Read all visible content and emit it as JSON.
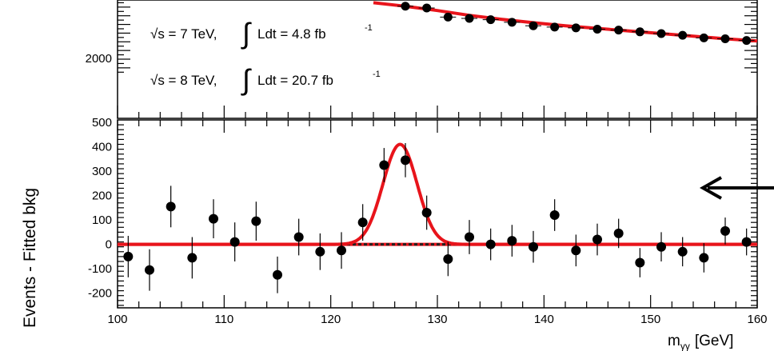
{
  "chart_data": [
    {
      "type": "scatter",
      "panel": "upper",
      "annotations": [
        "√s = 7 TeV,",
        "Ldt = 4.8 fb",
        "-1",
        "√s = 8 TeV,",
        "Ldt = 20.7 fb",
        "-1"
      ],
      "ytick_labels": [
        "2000"
      ],
      "xlim": [
        100,
        160
      ],
      "series": [
        {
          "x": [
            127,
            129,
            131,
            133,
            135,
            137,
            139,
            141,
            143,
            145,
            147,
            149,
            151,
            153,
            155,
            157,
            159
          ],
          "y": [
            2610,
            2590,
            2485,
            2470,
            2455,
            2425,
            2385,
            2370,
            2360,
            2345,
            2335,
            2315,
            2295,
            2275,
            2245,
            2235,
            2215
          ]
        }
      ],
      "fit_line": {
        "x": [
          124,
          127,
          130,
          133,
          136,
          139,
          142,
          145,
          148,
          151,
          154,
          157,
          160
        ],
        "y": [
          2650,
          2610,
          2560,
          2505,
          2460,
          2420,
          2385,
          2355,
          2325,
          2295,
          2265,
          2235,
          2210
        ]
      }
    },
    {
      "type": "scatter",
      "panel": "lower",
      "ylabel": "Events - Fitted bkg",
      "xlabel": "m",
      "xlabel_sub": "γγ",
      "xlabel_unit": "[GeV]",
      "xlim": [
        100,
        160
      ],
      "ylim": [
        -260,
        510
      ],
      "xtick_labels": [
        "100",
        "110",
        "120",
        "130",
        "140",
        "150",
        "160"
      ],
      "ytick_labels": [
        "500",
        "400",
        "300",
        "200",
        "100",
        "0",
        "-100",
        "-200"
      ],
      "series": [
        {
          "x": [
            101,
            103,
            105,
            107,
            109,
            111,
            113,
            115,
            117,
            119,
            121,
            123,
            125,
            127,
            129,
            131,
            133,
            135,
            137,
            139,
            141,
            143,
            145,
            147,
            149,
            151,
            153,
            155,
            157,
            159
          ],
          "y": [
            -50,
            -105,
            155,
            -55,
            105,
            10,
            95,
            -125,
            30,
            -30,
            -25,
            90,
            325,
            345,
            130,
            -60,
            30,
            0,
            15,
            -10,
            120,
            -25,
            20,
            45,
            -75,
            -10,
            -30,
            -55,
            55,
            10
          ],
          "err": [
            85,
            85,
            85,
            85,
            80,
            80,
            80,
            75,
            75,
            75,
            75,
            75,
            70,
            70,
            70,
            70,
            70,
            65,
            65,
            65,
            65,
            65,
            65,
            60,
            60,
            60,
            60,
            60,
            55,
            55
          ]
        }
      ],
      "signal_fit": {
        "mean": 126.5,
        "sigma": 1.6,
        "amplitude": 410
      },
      "background_line": 0,
      "arrow": "right-side, pointing left"
    }
  ]
}
